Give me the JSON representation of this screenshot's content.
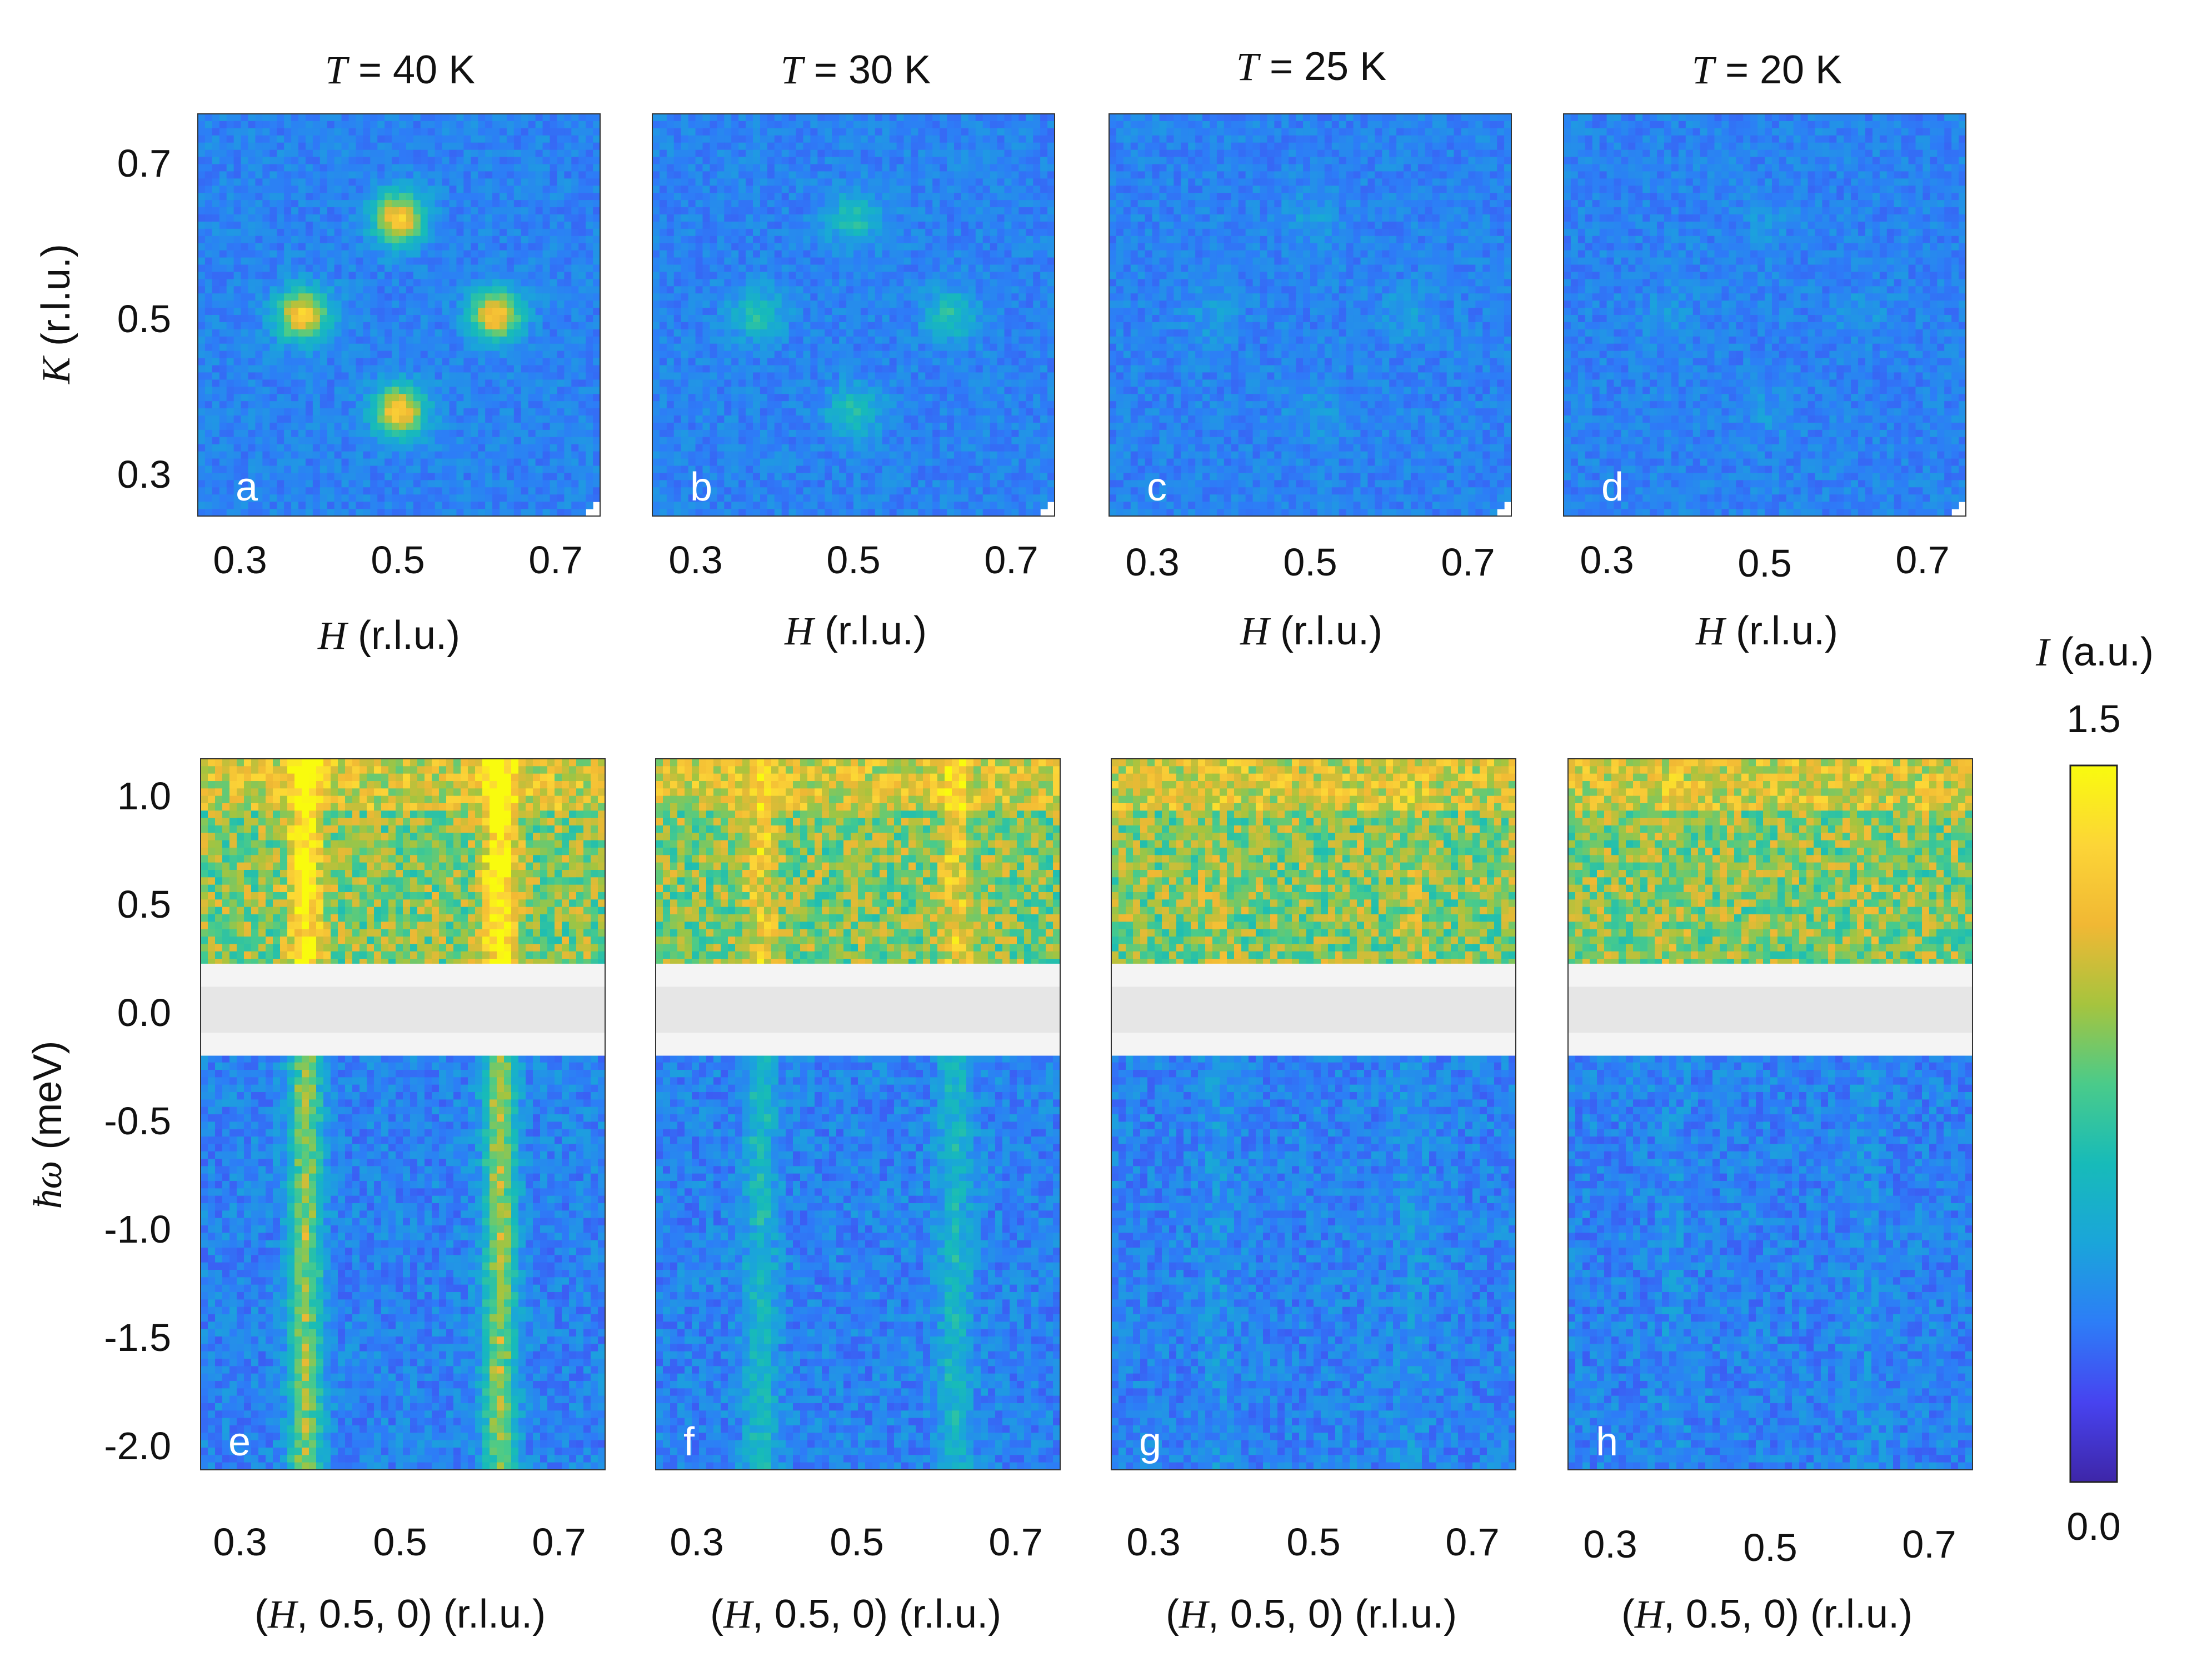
{
  "chart_data": {
    "type": "heatmap",
    "panels": [
      {
        "id": "a",
        "row": "top",
        "temperature_label_var": "T",
        "temperature_label_value": " = 40 K",
        "peak_strength": 1.0
      },
      {
        "id": "b",
        "row": "top",
        "temperature_label_var": "T",
        "temperature_label_value": " = 30 K",
        "peak_strength": 0.38
      },
      {
        "id": "c",
        "row": "top",
        "temperature_label_var": "T",
        "temperature_label_value": " = 25 K",
        "peak_strength": 0.12
      },
      {
        "id": "d",
        "row": "top",
        "temperature_label_var": "T",
        "temperature_label_value": " = 20 K",
        "peak_strength": 0.08
      },
      {
        "id": "e",
        "row": "bottom",
        "peak_strength": 1.0
      },
      {
        "id": "f",
        "row": "bottom",
        "peak_strength": 0.45
      },
      {
        "id": "g",
        "row": "bottom",
        "peak_strength": 0.12
      },
      {
        "id": "h",
        "row": "bottom",
        "peak_strength": 0.08
      }
    ],
    "top_row": {
      "xlabel_var": "H",
      "xlabel_unit": " (r.l.u.)",
      "ylabel_var": "K",
      "ylabel_unit": " (r.l.u.)",
      "xlim": [
        0.25,
        0.75
      ],
      "ylim": [
        0.25,
        0.75
      ],
      "xticks": [
        "0.3",
        "0.5",
        "0.7"
      ],
      "yticks": [
        "0.7",
        "0.5",
        "0.3"
      ],
      "peaks_HK": [
        [
          0.5,
          0.62
        ],
        [
          0.38,
          0.5
        ],
        [
          0.62,
          0.5
        ],
        [
          0.5,
          0.38
        ]
      ]
    },
    "bottom_row": {
      "xlabel_parts": [
        "(",
        "H",
        ", 0.5, 0) (r.l.u.)"
      ],
      "ylabel_var": "ħω",
      "ylabel_unit": " (meV)",
      "xlim": [
        0.25,
        0.75
      ],
      "ylim": [
        -2.2,
        1.2
      ],
      "xticks": [
        "0.3",
        "0.5",
        "0.7"
      ],
      "yticks": [
        "1.0",
        "0.5",
        "0.0",
        "-0.5",
        "-1.0",
        "-1.5",
        "-2.0"
      ],
      "masked_energy_range": [
        -0.22,
        0.22
      ],
      "dispersion_H": [
        0.38,
        0.62
      ]
    },
    "colorbar": {
      "label_var": "I",
      "label_unit": " (a.u.)",
      "min_label": "0.0",
      "max_label": "1.5",
      "range": [
        0.0,
        1.5
      ],
      "colormap": "parula",
      "colors": [
        "#3e26a8",
        "#4743f0",
        "#2d7df7",
        "#1aa5da",
        "#17bbb9",
        "#4acb8a",
        "#a6c43e",
        "#f1b834",
        "#fcd537",
        "#f9fb0e"
      ]
    }
  }
}
